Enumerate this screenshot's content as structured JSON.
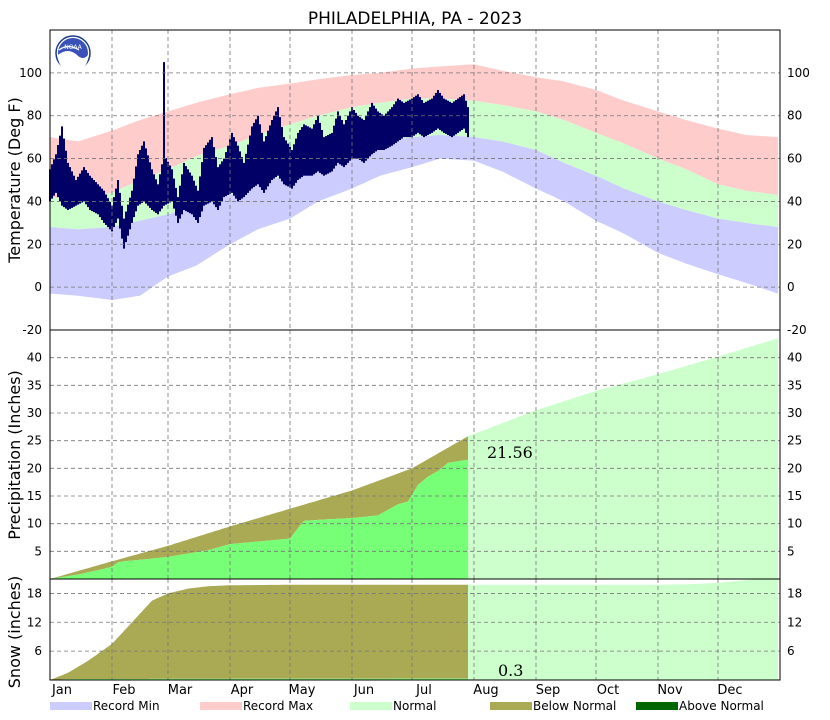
{
  "chart_data": {
    "type": "area",
    "title": "PHILADELPHIA, PA - 2023",
    "months": [
      "Jan",
      "Feb",
      "Mar",
      "Apr",
      "May",
      "Jun",
      "Jul",
      "Aug",
      "Sep",
      "Oct",
      "Nov",
      "Dec"
    ],
    "legend": {
      "placement": "bottom",
      "items": [
        {
          "label": "Record Min",
          "color": "#ccccff"
        },
        {
          "label": "Record Max",
          "color": "#ffcccc"
        },
        {
          "label": "Normal",
          "color": "#ccffcc"
        },
        {
          "label": "Below Normal",
          "color": "#aaaa55"
        },
        {
          "label": "Above Normal",
          "color": "#006600"
        }
      ]
    },
    "panels": [
      {
        "id": "temperature",
        "ylabel": "Temperature (Deg F)",
        "ylim": [
          -20,
          120
        ],
        "yticks": [
          -20,
          0,
          20,
          40,
          60,
          80,
          100
        ],
        "normal_high": [
          [
            1,
            42
          ],
          [
            15,
            41
          ],
          [
            32,
            44
          ],
          [
            46,
            50
          ],
          [
            60,
            55
          ],
          [
            74,
            61
          ],
          [
            91,
            66
          ],
          [
            105,
            71
          ],
          [
            121,
            76
          ],
          [
            135,
            80
          ],
          [
            152,
            84
          ],
          [
            166,
            86
          ],
          [
            182,
            88
          ],
          [
            196,
            88
          ],
          [
            213,
            87
          ],
          [
            227,
            85
          ],
          [
            244,
            82
          ],
          [
            258,
            78
          ],
          [
            274,
            72
          ],
          [
            288,
            67
          ],
          [
            305,
            60
          ],
          [
            319,
            55
          ],
          [
            335,
            48
          ],
          [
            349,
            45
          ],
          [
            365,
            43
          ]
        ],
        "normal_low": [
          [
            1,
            28
          ],
          [
            15,
            27
          ],
          [
            32,
            28
          ],
          [
            46,
            31
          ],
          [
            60,
            34
          ],
          [
            74,
            38
          ],
          [
            91,
            43
          ],
          [
            105,
            48
          ],
          [
            121,
            53
          ],
          [
            135,
            58
          ],
          [
            152,
            63
          ],
          [
            166,
            67
          ],
          [
            182,
            70
          ],
          [
            196,
            71
          ],
          [
            213,
            70
          ],
          [
            227,
            68
          ],
          [
            244,
            64
          ],
          [
            258,
            58
          ],
          [
            274,
            52
          ],
          [
            288,
            46
          ],
          [
            305,
            40
          ],
          [
            319,
            36
          ],
          [
            335,
            32
          ],
          [
            349,
            30
          ],
          [
            365,
            28
          ]
        ],
        "record_high": [
          [
            1,
            70
          ],
          [
            15,
            68
          ],
          [
            32,
            73
          ],
          [
            46,
            78
          ],
          [
            60,
            82
          ],
          [
            74,
            86
          ],
          [
            91,
            90
          ],
          [
            105,
            93
          ],
          [
            121,
            95
          ],
          [
            135,
            97
          ],
          [
            152,
            99
          ],
          [
            166,
            100
          ],
          [
            182,
            102
          ],
          [
            196,
            103
          ],
          [
            213,
            104
          ],
          [
            227,
            101
          ],
          [
            244,
            98
          ],
          [
            258,
            96
          ],
          [
            274,
            92
          ],
          [
            288,
            87
          ],
          [
            305,
            82
          ],
          [
            319,
            78
          ],
          [
            335,
            74
          ],
          [
            349,
            71
          ],
          [
            365,
            70
          ]
        ],
        "record_low": [
          [
            1,
            -3
          ],
          [
            15,
            -4
          ],
          [
            32,
            -6
          ],
          [
            46,
            -4
          ],
          [
            60,
            5
          ],
          [
            74,
            10
          ],
          [
            91,
            20
          ],
          [
            105,
            27
          ],
          [
            121,
            32
          ],
          [
            135,
            40
          ],
          [
            152,
            46
          ],
          [
            166,
            52
          ],
          [
            182,
            56
          ],
          [
            196,
            60
          ],
          [
            213,
            59
          ],
          [
            227,
            54
          ],
          [
            244,
            46
          ],
          [
            258,
            40
          ],
          [
            274,
            31
          ],
          [
            288,
            25
          ],
          [
            305,
            16
          ],
          [
            319,
            11
          ],
          [
            335,
            6
          ],
          [
            349,
            2
          ],
          [
            365,
            -3
          ]
        ],
        "observed_high": [
          [
            1,
            55
          ],
          [
            4,
            62
          ],
          [
            7,
            75
          ],
          [
            10,
            58
          ],
          [
            14,
            50
          ],
          [
            18,
            56
          ],
          [
            21,
            52
          ],
          [
            25,
            48
          ],
          [
            28,
            45
          ],
          [
            32,
            38
          ],
          [
            35,
            50
          ],
          [
            38,
            32
          ],
          [
            42,
            45
          ],
          [
            45,
            62
          ],
          [
            48,
            68
          ],
          [
            52,
            55
          ],
          [
            55,
            48
          ],
          [
            58,
            62
          ],
          [
            62,
            55
          ],
          [
            65,
            42
          ],
          [
            68,
            58
          ],
          [
            72,
            52
          ],
          [
            75,
            45
          ],
          [
            78,
            65
          ],
          [
            82,
            70
          ],
          [
            85,
            56
          ],
          [
            88,
            60
          ],
          [
            92,
            72
          ],
          [
            95,
            66
          ],
          [
            98,
            58
          ],
          [
            102,
            75
          ],
          [
            105,
            80
          ],
          [
            108,
            68
          ],
          [
            112,
            78
          ],
          [
            115,
            84
          ],
          [
            118,
            70
          ],
          [
            122,
            64
          ],
          [
            125,
            72
          ],
          [
            128,
            76
          ],
          [
            132,
            74
          ],
          [
            135,
            80
          ],
          [
            138,
            70
          ],
          [
            142,
            72
          ],
          [
            145,
            82
          ],
          [
            148,
            76
          ],
          [
            152,
            84
          ],
          [
            155,
            80
          ],
          [
            158,
            78
          ],
          [
            162,
            86
          ],
          [
            165,
            82
          ],
          [
            168,
            80
          ],
          [
            172,
            84
          ],
          [
            175,
            88
          ],
          [
            178,
            86
          ],
          [
            182,
            88
          ],
          [
            185,
            90
          ],
          [
            188,
            86
          ],
          [
            192,
            88
          ],
          [
            195,
            92
          ],
          [
            198,
            88
          ],
          [
            202,
            86
          ],
          [
            205,
            88
          ],
          [
            208,
            90
          ],
          [
            210,
            84
          ]
        ],
        "observed_low": [
          [
            1,
            40
          ],
          [
            4,
            44
          ],
          [
            7,
            38
          ],
          [
            10,
            36
          ],
          [
            14,
            38
          ],
          [
            18,
            40
          ],
          [
            21,
            36
          ],
          [
            25,
            34
          ],
          [
            28,
            30
          ],
          [
            32,
            26
          ],
          [
            35,
            32
          ],
          [
            38,
            18
          ],
          [
            42,
            30
          ],
          [
            45,
            38
          ],
          [
            48,
            40
          ],
          [
            52,
            36
          ],
          [
            55,
            34
          ],
          [
            58,
            38
          ],
          [
            62,
            40
          ],
          [
            65,
            30
          ],
          [
            68,
            36
          ],
          [
            72,
            34
          ],
          [
            75,
            30
          ],
          [
            78,
            38
          ],
          [
            82,
            40
          ],
          [
            85,
            36
          ],
          [
            88,
            42
          ],
          [
            92,
            44
          ],
          [
            95,
            40
          ],
          [
            98,
            42
          ],
          [
            102,
            46
          ],
          [
            105,
            48
          ],
          [
            108,
            44
          ],
          [
            112,
            50
          ],
          [
            115,
            52
          ],
          [
            118,
            48
          ],
          [
            122,
            46
          ],
          [
            125,
            50
          ],
          [
            128,
            52
          ],
          [
            132,
            52
          ],
          [
            135,
            54
          ],
          [
            138,
            52
          ],
          [
            142,
            54
          ],
          [
            145,
            58
          ],
          [
            148,
            56
          ],
          [
            152,
            60
          ],
          [
            155,
            60
          ],
          [
            158,
            58
          ],
          [
            162,
            62
          ],
          [
            165,
            64
          ],
          [
            168,
            64
          ],
          [
            172,
            66
          ],
          [
            175,
            68
          ],
          [
            178,
            70
          ],
          [
            182,
            70
          ],
          [
            185,
            72
          ],
          [
            188,
            70
          ],
          [
            192,
            72
          ],
          [
            195,
            74
          ],
          [
            198,
            72
          ],
          [
            202,
            70
          ],
          [
            205,
            72
          ],
          [
            208,
            74
          ],
          [
            210,
            70
          ]
        ],
        "observed_spike": {
          "day": 58,
          "value": 105
        }
      },
      {
        "id": "precipitation",
        "ylabel": "Precipitation (Inches)",
        "ylim": [
          0,
          45
        ],
        "yticks": [
          5,
          10,
          15,
          20,
          25,
          30,
          35,
          40
        ],
        "normal_cumulative": [
          [
            1,
            0
          ],
          [
            32,
            3.2
          ],
          [
            60,
            6.0
          ],
          [
            91,
            9.5
          ],
          [
            121,
            12.7
          ],
          [
            152,
            16.0
          ],
          [
            182,
            20.0
          ],
          [
            210,
            25.8
          ],
          [
            213,
            26.2
          ],
          [
            244,
            30.5
          ],
          [
            274,
            34.0
          ],
          [
            305,
            37.0
          ],
          [
            335,
            40.2
          ],
          [
            365,
            43.5
          ]
        ],
        "observed_cumulative": [
          [
            1,
            0
          ],
          [
            15,
            0.8
          ],
          [
            25,
            1.6
          ],
          [
            32,
            2.2
          ],
          [
            35,
            3.0
          ],
          [
            38,
            3.2
          ],
          [
            50,
            3.6
          ],
          [
            60,
            4.0
          ],
          [
            70,
            4.6
          ],
          [
            80,
            5.2
          ],
          [
            91,
            6.3
          ],
          [
            100,
            6.6
          ],
          [
            112,
            7.0
          ],
          [
            121,
            7.3
          ],
          [
            125,
            9.2
          ],
          [
            128,
            10.5
          ],
          [
            140,
            10.8
          ],
          [
            152,
            11.0
          ],
          [
            165,
            11.5
          ],
          [
            170,
            12.5
          ],
          [
            175,
            13.5
          ],
          [
            180,
            14.0
          ],
          [
            185,
            17.0
          ],
          [
            190,
            18.5
          ],
          [
            195,
            19.5
          ],
          [
            200,
            21.0
          ],
          [
            210,
            21.56
          ]
        ],
        "annotation": "21.56"
      },
      {
        "id": "snow",
        "ylabel": "Snow (inches)",
        "ylim": [
          0,
          21
        ],
        "yticks": [
          6,
          12,
          18
        ],
        "normal_cumulative": [
          [
            1,
            0
          ],
          [
            10,
            1.5
          ],
          [
            20,
            4
          ],
          [
            32,
            7.5
          ],
          [
            42,
            12
          ],
          [
            52,
            16.5
          ],
          [
            60,
            18
          ],
          [
            70,
            19
          ],
          [
            80,
            19.5
          ],
          [
            91,
            19.7
          ],
          [
            121,
            19.8
          ],
          [
            213,
            19.8
          ],
          [
            244,
            19.8
          ],
          [
            274,
            19.8
          ],
          [
            305,
            19.8
          ],
          [
            320,
            19.9
          ],
          [
            335,
            20.2
          ],
          [
            350,
            20.8
          ],
          [
            365,
            21.5
          ]
        ],
        "observed_cumulative": [
          [
            1,
            0
          ],
          [
            5,
            0.1
          ],
          [
            15,
            0.2
          ],
          [
            210,
            0.3
          ]
        ],
        "annotation": "0.3"
      }
    ]
  }
}
